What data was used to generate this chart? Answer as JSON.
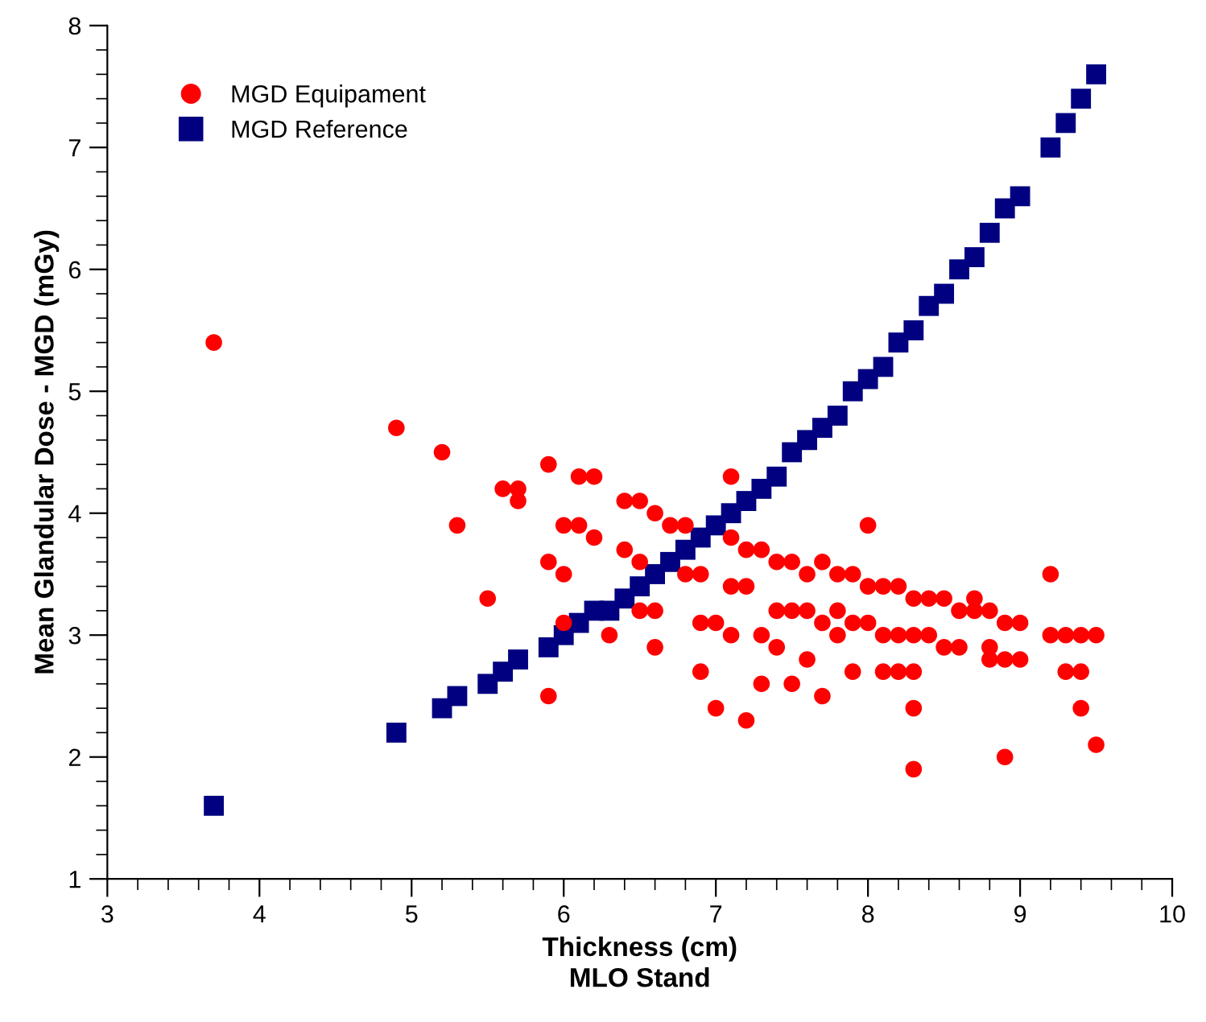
{
  "chart_data": {
    "type": "scatter",
    "xlabel": "Thickness (cm)\nMLO Stand",
    "ylabel": "Mean Glandular Dose - MGD (mGy)",
    "xlim": [
      3,
      10
    ],
    "ylim": [
      1,
      8
    ],
    "xticks": [
      3,
      4,
      5,
      6,
      7,
      8,
      9,
      10
    ],
    "yticks": [
      1,
      2,
      3,
      4,
      5,
      6,
      7,
      8
    ],
    "grid": false,
    "legend": "top left",
    "series": [
      {
        "name": "MGD Equipament",
        "color": "#ff0000",
        "marker": "circle",
        "x": [
          3.7,
          4.9,
          5.2,
          5.3,
          5.5,
          5.6,
          5.7,
          5.7,
          5.9,
          5.9,
          5.9,
          6.0,
          6.1,
          6.0,
          6.1,
          6.2,
          6.2,
          6.0,
          6.3,
          6.4,
          6.5,
          6.4,
          6.5,
          6.5,
          6.6,
          6.6,
          6.6,
          6.7,
          6.8,
          6.8,
          6.9,
          6.9,
          6.9,
          7.0,
          7.0,
          7.1,
          7.1,
          7.1,
          7.1,
          7.2,
          7.2,
          7.2,
          7.3,
          7.3,
          7.3,
          7.4,
          7.4,
          7.4,
          7.5,
          7.5,
          7.5,
          7.6,
          7.6,
          7.6,
          7.7,
          7.7,
          7.7,
          7.8,
          7.8,
          7.8,
          7.9,
          7.9,
          7.9,
          8.0,
          8.0,
          8.0,
          8.1,
          8.1,
          8.1,
          8.2,
          8.2,
          8.2,
          8.3,
          8.3,
          8.3,
          8.3,
          8.3,
          8.4,
          8.4,
          8.5,
          8.5,
          8.6,
          8.6,
          8.7,
          8.7,
          8.8,
          8.8,
          8.8,
          8.9,
          8.9,
          8.9,
          9.0,
          9.0,
          9.2,
          9.2,
          9.3,
          9.3,
          9.4,
          9.4,
          9.4,
          9.5,
          9.5
        ],
        "values": [
          5.4,
          4.7,
          4.5,
          3.9,
          3.3,
          4.2,
          4.2,
          4.1,
          4.4,
          3.6,
          2.5,
          3.9,
          3.9,
          3.5,
          4.3,
          4.3,
          3.8,
          3.1,
          3.0,
          4.1,
          4.1,
          3.7,
          3.6,
          3.2,
          4.0,
          3.2,
          2.9,
          3.9,
          3.9,
          3.5,
          3.5,
          3.1,
          2.7,
          3.1,
          2.4,
          4.3,
          3.8,
          3.4,
          3.0,
          3.7,
          3.4,
          2.3,
          3.7,
          3.0,
          2.6,
          3.6,
          3.2,
          2.9,
          3.6,
          3.2,
          2.6,
          3.5,
          3.2,
          2.8,
          3.6,
          3.1,
          2.5,
          3.5,
          3.2,
          3.0,
          3.5,
          3.1,
          2.7,
          3.9,
          3.4,
          3.1,
          3.4,
          3.0,
          2.7,
          3.4,
          3.0,
          2.7,
          3.3,
          3.0,
          2.7,
          2.4,
          1.9,
          3.3,
          3.0,
          3.3,
          2.9,
          3.2,
          2.9,
          3.3,
          3.2,
          3.2,
          2.9,
          2.8,
          3.1,
          2.8,
          2.0,
          3.1,
          2.8,
          3.5,
          3.0,
          3.0,
          2.7,
          3.0,
          2.7,
          2.4,
          3.0,
          2.1
        ]
      },
      {
        "name": "MGD Reference",
        "color": "#000080",
        "marker": "square",
        "x": [
          3.7,
          4.9,
          5.2,
          5.3,
          5.5,
          5.6,
          5.7,
          5.9,
          6.0,
          6.1,
          6.2,
          6.3,
          6.4,
          6.5,
          6.6,
          6.7,
          6.8,
          6.9,
          7.0,
          7.1,
          7.2,
          7.3,
          7.4,
          7.5,
          7.6,
          7.7,
          7.8,
          7.9,
          8.0,
          8.1,
          8.2,
          8.3,
          8.4,
          8.5,
          8.6,
          8.7,
          8.8,
          8.9,
          9.0,
          9.2,
          9.3,
          9.4,
          9.5
        ],
        "values": [
          1.6,
          2.2,
          2.4,
          2.5,
          2.6,
          2.7,
          2.8,
          2.9,
          3.0,
          3.1,
          3.2,
          3.2,
          3.3,
          3.4,
          3.5,
          3.6,
          3.7,
          3.8,
          3.9,
          4.0,
          4.1,
          4.2,
          4.3,
          4.5,
          4.6,
          4.7,
          4.8,
          5.0,
          5.1,
          5.2,
          5.4,
          5.5,
          5.7,
          5.8,
          6.0,
          6.1,
          6.3,
          6.5,
          6.6,
          7.0,
          7.2,
          7.4,
          7.6
        ]
      }
    ]
  }
}
